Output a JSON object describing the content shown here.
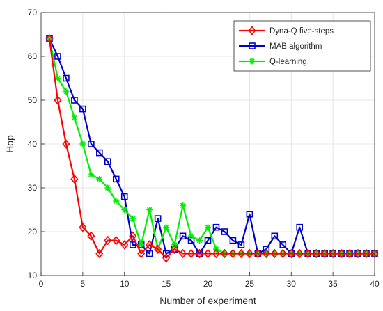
{
  "chart_data": {
    "type": "line",
    "xlabel": "Number of experiment",
    "ylabel": "Hop",
    "xlim": [
      0,
      40
    ],
    "ylim": [
      10,
      70
    ],
    "xticks": [
      0,
      5,
      10,
      15,
      20,
      25,
      30,
      35,
      40
    ],
    "yticks": [
      10,
      20,
      30,
      40,
      50,
      60,
      70
    ],
    "grid": true,
    "legend_position": "top-right",
    "x": [
      1,
      2,
      3,
      4,
      5,
      6,
      7,
      8,
      9,
      10,
      11,
      12,
      13,
      14,
      15,
      16,
      17,
      18,
      19,
      20,
      21,
      22,
      23,
      24,
      25,
      26,
      27,
      28,
      29,
      30,
      31,
      32,
      33,
      34,
      35,
      36,
      37,
      38,
      39,
      40
    ],
    "series": [
      {
        "name": "Dyna-Q five-steps",
        "color": "#ff0000",
        "marker": "diamond",
        "values": [
          64,
          50,
          40,
          32,
          21,
          19,
          15,
          18,
          18,
          17,
          19,
          15,
          17,
          16,
          14,
          16,
          15,
          15,
          15,
          15,
          15,
          15,
          15,
          15,
          15,
          15,
          15,
          15,
          15,
          15,
          15,
          15,
          15,
          15,
          15,
          15,
          15,
          15,
          15,
          15
        ]
      },
      {
        "name": "MAB algorithm",
        "color": "#0000cc",
        "marker": "square",
        "values": [
          64,
          60,
          55,
          50,
          48,
          40,
          38,
          36,
          32,
          28,
          17,
          17,
          15,
          23,
          15,
          16,
          19,
          18,
          15,
          18,
          21,
          20,
          18,
          17,
          24,
          15,
          16,
          19,
          17,
          15,
          21,
          15,
          15,
          15,
          15,
          15,
          15,
          15,
          15,
          15
        ]
      },
      {
        "name": "Q-learning",
        "color": "#00ee00",
        "marker": "asterisk",
        "values": [
          64,
          55,
          52,
          46,
          40,
          33,
          32,
          30,
          27,
          25,
          23,
          17,
          25,
          16,
          21,
          17,
          26,
          19,
          18,
          21,
          16,
          15,
          15,
          15,
          15,
          15,
          15,
          15,
          15,
          15,
          15,
          15,
          15,
          15,
          15,
          15,
          15,
          15,
          15,
          15
        ]
      }
    ]
  }
}
